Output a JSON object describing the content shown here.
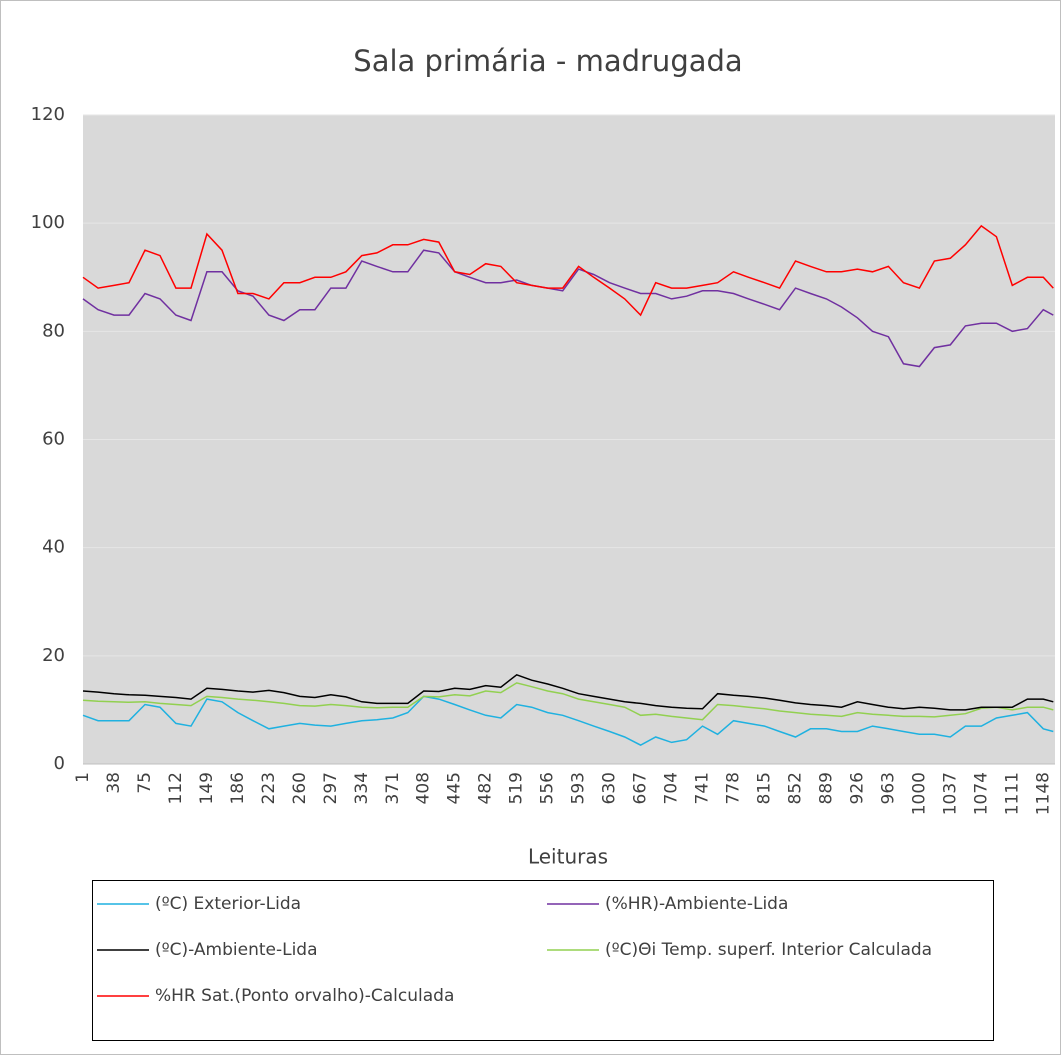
{
  "chart_data": {
    "type": "line",
    "title": "Sala primária - madrugada",
    "x_label": "Leituras",
    "x": [
      1,
      19,
      38,
      56,
      75,
      93,
      112,
      130,
      149,
      167,
      186,
      204,
      223,
      241,
      260,
      278,
      297,
      315,
      334,
      352,
      371,
      389,
      408,
      426,
      445,
      463,
      482,
      500,
      519,
      537,
      556,
      574,
      593,
      611,
      630,
      648,
      667,
      685,
      704,
      722,
      741,
      759,
      778,
      796,
      815,
      833,
      852,
      870,
      889,
      907,
      926,
      944,
      963,
      981,
      1000,
      1018,
      1037,
      1055,
      1074,
      1092,
      1111,
      1129,
      1148,
      1160
    ],
    "xlim": [
      1,
      1162
    ],
    "xticks": [
      1,
      38,
      75,
      112,
      149,
      186,
      223,
      260,
      297,
      334,
      371,
      408,
      445,
      482,
      519,
      556,
      593,
      630,
      667,
      704,
      741,
      778,
      815,
      852,
      889,
      926,
      963,
      1000,
      1037,
      1074,
      1111,
      1148
    ],
    "ylim": [
      0,
      120
    ],
    "yticks": [
      0,
      20,
      40,
      60,
      80,
      100,
      120
    ],
    "grid": true,
    "series": [
      {
        "name": "(ºC) Exterior-Lida",
        "color": "#1fb1e0",
        "values": [
          9,
          8,
          8,
          8,
          11,
          10.5,
          7.5,
          7,
          12,
          11.5,
          9.5,
          8,
          6.5,
          7,
          7.5,
          7.2,
          7,
          7.5,
          8,
          8.2,
          8.5,
          9.5,
          12.5,
          12,
          11,
          10,
          9,
          8.5,
          11,
          10.5,
          9.5,
          9,
          8,
          7,
          6,
          5,
          3.5,
          5,
          4,
          4.5,
          7,
          5.5,
          8,
          7.5,
          7,
          6,
          5,
          6.5,
          6.5,
          6,
          6,
          7,
          6.5,
          6,
          5.5,
          5.5,
          5,
          7,
          7,
          8.5,
          9,
          9.5,
          6.5,
          6
        ]
      },
      {
        "name": "(%HR)-Ambiente-Lida",
        "color": "#7030a0",
        "values": [
          86,
          84,
          83,
          83,
          87,
          86,
          83,
          82,
          91,
          91,
          87.5,
          86.5,
          83,
          82,
          84,
          84,
          88,
          88,
          93,
          92,
          91,
          91,
          95,
          94.5,
          91,
          90,
          89,
          89,
          89.5,
          88.5,
          88,
          87.5,
          91.5,
          90.5,
          89,
          88,
          87,
          87,
          86,
          86.5,
          87.5,
          87.5,
          87,
          86,
          85,
          84,
          88,
          87,
          86,
          84.5,
          82.5,
          80,
          79,
          74,
          73.5,
          77,
          77.5,
          81,
          81.5,
          81.5,
          80,
          80.5,
          84,
          83
        ]
      },
      {
        "name": "(ºC)-Ambiente-Lida",
        "color": "#000000",
        "values": [
          13.5,
          13.3,
          13,
          12.8,
          12.7,
          12.5,
          12.3,
          12,
          14,
          13.8,
          13.5,
          13.3,
          13.6,
          13.2,
          12.5,
          12.3,
          12.8,
          12.4,
          11.5,
          11.2,
          11.2,
          11.2,
          13.5,
          13.4,
          14,
          13.8,
          14.5,
          14.2,
          16.5,
          15.5,
          14.8,
          14,
          13,
          12.5,
          12,
          11.5,
          11.2,
          10.8,
          10.5,
          10.3,
          10.2,
          13,
          12.7,
          12.5,
          12.2,
          11.8,
          11.3,
          11,
          10.8,
          10.5,
          11.5,
          11,
          10.5,
          10.2,
          10.5,
          10.3,
          10,
          10,
          10.5,
          10.5,
          10.5,
          12,
          12,
          11.5
        ]
      },
      {
        "name": "(ºC)Θi Temp. superf.  Interior Calculada",
        "color": "#92d050",
        "values": [
          11.8,
          11.6,
          11.5,
          11.4,
          11.5,
          11.2,
          11,
          10.8,
          12.5,
          12.3,
          12,
          11.8,
          11.5,
          11.2,
          10.8,
          10.7,
          11,
          10.8,
          10.5,
          10.4,
          10.5,
          10.5,
          12.5,
          12.4,
          12.8,
          12.6,
          13.5,
          13.2,
          15,
          14.3,
          13.5,
          13,
          12,
          11.5,
          11,
          10.5,
          9,
          9.2,
          8.8,
          8.5,
          8.2,
          11,
          10.8,
          10.5,
          10.2,
          9.8,
          9.5,
          9.2,
          9,
          8.8,
          9.5,
          9.2,
          9,
          8.8,
          8.8,
          8.7,
          9,
          9.3,
          10.3,
          10.5,
          10,
          10.5,
          10.5,
          10
        ]
      },
      {
        "name": "%HR  Sat.(Ponto orvalho)-Calculada",
        "color": "#ff0000",
        "values": [
          90,
          88,
          88.5,
          89,
          95,
          94,
          88,
          88,
          98,
          95,
          87,
          87,
          86,
          89,
          89,
          90,
          90,
          91,
          94,
          94.5,
          96,
          96,
          97,
          96.5,
          91,
          90.5,
          92.5,
          92,
          89,
          88.5,
          88,
          88,
          92,
          90,
          88,
          86,
          83,
          89,
          88,
          88,
          88.5,
          89,
          91,
          90,
          89,
          88,
          93,
          92,
          91,
          91,
          91.5,
          91,
          92,
          89,
          88,
          93,
          93.5,
          96,
          99.5,
          97.5,
          88.5,
          90,
          90,
          88
        ]
      }
    ]
  }
}
